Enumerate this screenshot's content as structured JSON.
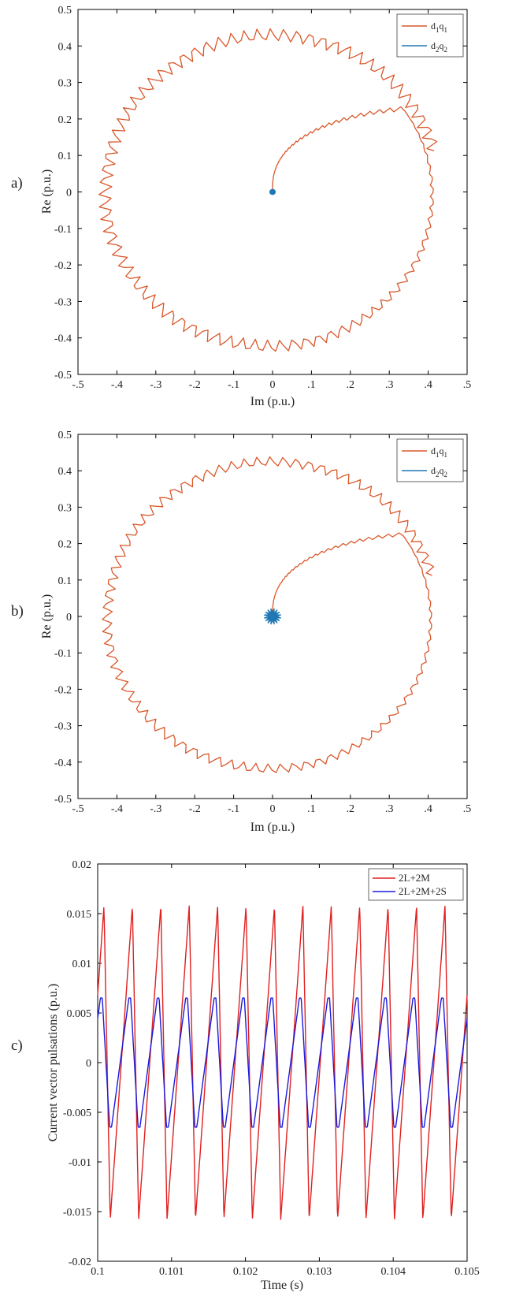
{
  "chart_data": [
    {
      "panel_label": "a)",
      "type": "line",
      "xlabel": "Im (p.u.)",
      "ylabel": "Re (p.u.)",
      "xlim": [
        -0.5,
        0.5
      ],
      "ylim": [
        -0.5,
        0.5
      ],
      "xticks": [
        -0.5,
        -0.4,
        -0.3,
        -0.2,
        -0.1,
        0,
        0.1,
        0.2,
        0.3,
        0.4,
        0.5
      ],
      "yticks": [
        -0.5,
        -0.4,
        -0.3,
        -0.2,
        -0.1,
        0,
        0.1,
        0.2,
        0.3,
        0.4,
        0.5
      ],
      "grid": false,
      "legend_position": "top-right",
      "series": [
        {
          "name": "d1q1",
          "legend_sub": [
            "d",
            "1",
            "q",
            "1"
          ],
          "color": "#d9582b",
          "shape": "spiral trajectory from origin to a rippled circle",
          "start": [
            0,
            0
          ],
          "circle_radius": 0.43,
          "ripple_amplitude": 0.018,
          "ripple_cycles": 80
        },
        {
          "name": "d2q2",
          "legend_sub": [
            "d",
            "2",
            "q",
            "2"
          ],
          "color": "#1f77b4",
          "shape": "small cluster at origin",
          "center": [
            0,
            0
          ],
          "radius": 0.008
        }
      ]
    },
    {
      "panel_label": "b)",
      "type": "line",
      "xlabel": "Im (p.u.)",
      "ylabel": "Re (p.u.)",
      "xlim": [
        -0.5,
        0.5
      ],
      "ylim": [
        -0.5,
        0.5
      ],
      "xticks": [
        -0.5,
        -0.4,
        -0.3,
        -0.2,
        -0.1,
        0,
        0.1,
        0.2,
        0.3,
        0.4,
        0.5
      ],
      "yticks": [
        -0.5,
        -0.4,
        -0.3,
        -0.2,
        -0.1,
        0,
        0.1,
        0.2,
        0.3,
        0.4,
        0.5
      ],
      "grid": false,
      "legend_position": "top-right",
      "series": [
        {
          "name": "d1q1",
          "legend_sub": [
            "d",
            "1",
            "q",
            "1"
          ],
          "color": "#d9582b",
          "shape": "spiral trajectory from origin to a rippled circle",
          "start": [
            0,
            0
          ],
          "circle_radius": 0.425,
          "ripple_amplitude": 0.014,
          "ripple_cycles": 80
        },
        {
          "name": "d2q2",
          "legend_sub": [
            "d",
            "2",
            "q",
            "2"
          ],
          "color": "#1f77b4",
          "shape": "star-shaped cluster at origin",
          "center": [
            0,
            0
          ],
          "radius": 0.022
        }
      ]
    },
    {
      "panel_label": "c)",
      "type": "line",
      "xlabel": "Time (s)",
      "ylabel": "Current vector pulsations (p.u.)",
      "xlim": [
        0.1,
        0.105
      ],
      "ylim": [
        -0.02,
        0.02
      ],
      "xticks": [
        0.1,
        0.101,
        0.102,
        0.103,
        0.104,
        0.105
      ],
      "yticks": [
        -0.02,
        -0.015,
        -0.01,
        -0.005,
        0,
        0.005,
        0.01,
        0.015,
        0.02
      ],
      "grid": false,
      "legend_position": "top-right",
      "series": [
        {
          "name": "2L+2M",
          "color": "#e02020",
          "period_s": 0.0003846,
          "amplitude": 0.0158,
          "phase_zero_crossing_s": 0.10017
        },
        {
          "name": "2L+2M+2S",
          "color": "#1a1adb",
          "period_s": 0.0003846,
          "amplitude": 0.0065,
          "phase_zero_crossing_s": 0.10017
        }
      ]
    }
  ]
}
